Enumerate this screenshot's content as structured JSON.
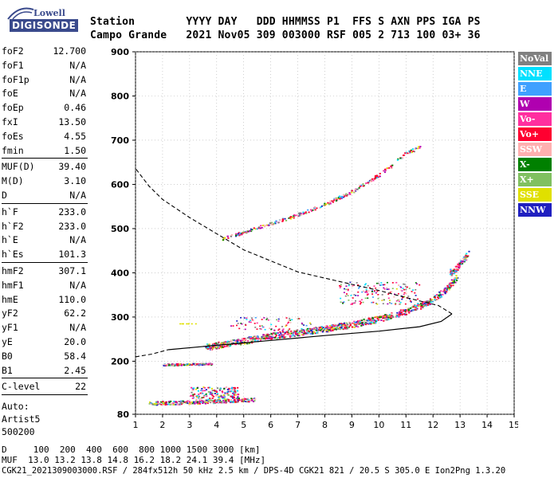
{
  "logo": {
    "line1": "Lowell",
    "line2": "DIGISONDE"
  },
  "header": {
    "line1": "Station        YYYY DAY   DDD HHMMSS P1  FFS S AXN PPS IGA PS",
    "line2": "Campo Grande   2021 Nov05 309 003000 RSF 005 2 713 100 03+ 36"
  },
  "params": {
    "group1": [
      {
        "k": "foF2",
        "v": "12.700"
      },
      {
        "k": "foF1",
        "v": "N/A"
      },
      {
        "k": "foF1p",
        "v": "N/A"
      },
      {
        "k": "foE",
        "v": "N/A"
      },
      {
        "k": "foEp",
        "v": "0.46"
      },
      {
        "k": "fxI",
        "v": "13.50"
      },
      {
        "k": "foEs",
        "v": "4.55"
      },
      {
        "k": "fmin",
        "v": "1.50"
      }
    ],
    "group2": [
      {
        "k": "MUF(D)",
        "v": "39.40"
      },
      {
        "k": "M(D)",
        "v": "3.10"
      },
      {
        "k": "D",
        "v": "N/A"
      }
    ],
    "group3": [
      {
        "k": "h`F",
        "v": "233.0"
      },
      {
        "k": "h`F2",
        "v": "233.0"
      },
      {
        "k": "h`E",
        "v": "N/A"
      },
      {
        "k": "h`Es",
        "v": "101.3"
      }
    ],
    "group4": [
      {
        "k": "hmF2",
        "v": "307.1"
      },
      {
        "k": "hmF1",
        "v": "N/A"
      },
      {
        "k": "hmE",
        "v": "110.0"
      },
      {
        "k": "yF2",
        "v": "62.2"
      },
      {
        "k": "yF1",
        "v": "N/A"
      },
      {
        "k": "yE",
        "v": "20.0"
      },
      {
        "k": "B0",
        "v": "58.4"
      },
      {
        "k": "B1",
        "v": "2.45"
      }
    ],
    "group5": [
      {
        "k": "C-level",
        "v": "22"
      }
    ],
    "auto": [
      "Auto:",
      "Artist5",
      "500200"
    ]
  },
  "legend": [
    {
      "label": "NoVal",
      "color": "#808080"
    },
    {
      "label": "NNE",
      "color": "#00e0ff"
    },
    {
      "label": "E",
      "color": "#3fa0ff"
    },
    {
      "label": "W",
      "color": "#b000b0"
    },
    {
      "label": "Vo-",
      "color": "#ff2f9f"
    },
    {
      "label": "Vo+",
      "color": "#ff0030"
    },
    {
      "label": "SSW",
      "color": "#ffb0b0"
    },
    {
      "label": "X-",
      "color": "#008000"
    },
    {
      "label": "X+",
      "color": "#80c060"
    },
    {
      "label": "SSE",
      "color": "#e0e000"
    },
    {
      "label": "NNW",
      "color": "#2020c0"
    }
  ],
  "footer": {
    "line1": "D     100  200  400  600  800 1000 1500 3000 [km]",
    "line2": "MUF  13.0 13.2 13.8 14.8 16.2 18.2 24.1 39.4 [MHz]",
    "line3": "CGK21_2021309003000.RSF / 284fx512h 50 kHz 2.5 km / DPS-4D CGK21 821 / 20.5 S 305.0 E Ion2Png 1.3.20"
  },
  "chart_data": {
    "type": "scatter",
    "xlim": [
      1,
      15
    ],
    "ylim": [
      80,
      900
    ],
    "x_ticks": [
      1,
      2,
      3,
      4,
      5,
      6,
      7,
      8,
      9,
      10,
      11,
      12,
      13,
      14,
      15
    ],
    "y_ticks": [
      80,
      200,
      300,
      400,
      500,
      600,
      700,
      800,
      900
    ],
    "grid": true,
    "profile_solid": [
      {
        "x": 2.2,
        "y": 226
      },
      {
        "x": 4,
        "y": 236
      },
      {
        "x": 6,
        "y": 247
      },
      {
        "x": 8,
        "y": 258
      },
      {
        "x": 10,
        "y": 268
      },
      {
        "x": 11.5,
        "y": 278
      },
      {
        "x": 12.3,
        "y": 290
      },
      {
        "x": 12.7,
        "y": 307
      }
    ],
    "profile_dashed_lower": [
      {
        "x": 1,
        "y": 210
      },
      {
        "x": 1.6,
        "y": 216
      },
      {
        "x": 2.2,
        "y": 226
      }
    ],
    "profile_dashed_upper": [
      {
        "x": 12.7,
        "y": 307
      },
      {
        "x": 12.2,
        "y": 326
      },
      {
        "x": 11,
        "y": 344
      },
      {
        "x": 10,
        "y": 360
      },
      {
        "x": 9,
        "y": 374
      },
      {
        "x": 7,
        "y": 402
      },
      {
        "x": 5,
        "y": 452
      },
      {
        "x": 3,
        "y": 525
      },
      {
        "x": 2,
        "y": 566
      },
      {
        "x": 1.5,
        "y": 596
      },
      {
        "x": 1,
        "y": 636
      }
    ],
    "traces": [
      {
        "name": "F2 O-trace",
        "points": [
          {
            "x": 3.6,
            "y": 233
          },
          {
            "x": 4.5,
            "y": 242
          },
          {
            "x": 6,
            "y": 258
          },
          {
            "x": 7.5,
            "y": 270
          },
          {
            "x": 9,
            "y": 284
          },
          {
            "x": 10,
            "y": 297
          },
          {
            "x": 11,
            "y": 314
          },
          {
            "x": 11.8,
            "y": 334
          },
          {
            "x": 12.3,
            "y": 355
          },
          {
            "x": 12.6,
            "y": 372
          },
          {
            "x": 12.9,
            "y": 395
          }
        ]
      },
      {
        "name": "F2 X-trace",
        "points": [
          {
            "x": 12.6,
            "y": 400
          },
          {
            "x": 12.9,
            "y": 415
          },
          {
            "x": 13.1,
            "y": 430
          },
          {
            "x": 13.3,
            "y": 445
          }
        ]
      },
      {
        "name": "Multi-hop",
        "points": [
          {
            "x": 4.2,
            "y": 478
          },
          {
            "x": 5,
            "y": 493
          },
          {
            "x": 6,
            "y": 512
          },
          {
            "x": 7,
            "y": 533
          },
          {
            "x": 8,
            "y": 556
          },
          {
            "x": 9,
            "y": 585
          },
          {
            "x": 10.1,
            "y": 627
          },
          {
            "x": 11,
            "y": 672
          },
          {
            "x": 11.5,
            "y": 686
          }
        ]
      },
      {
        "name": "Es 190",
        "points": [
          {
            "x": 2,
            "y": 193
          },
          {
            "x": 2.8,
            "y": 194
          },
          {
            "x": 3.8,
            "y": 195
          }
        ]
      },
      {
        "name": "Es 100",
        "points": [
          {
            "x": 1.5,
            "y": 106
          },
          {
            "x": 3,
            "y": 108
          },
          {
            "x": 4.5,
            "y": 112
          },
          {
            "x": 5.4,
            "y": 114
          }
        ]
      }
    ]
  }
}
